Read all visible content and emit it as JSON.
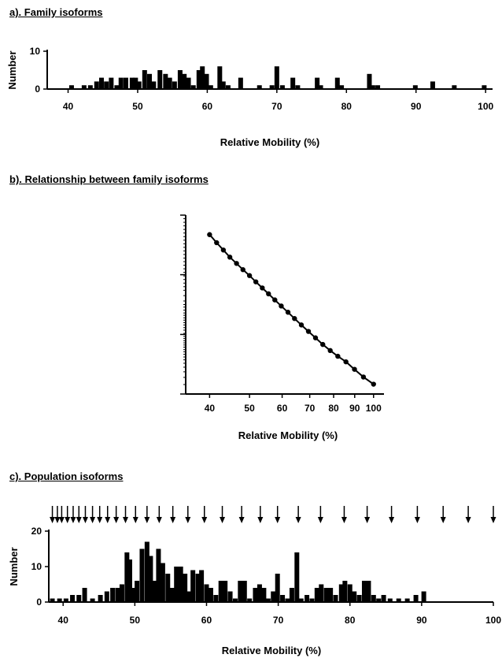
{
  "panels": {
    "a": {
      "title": "a).  Family isoforms"
    },
    "b": {
      "title": "b).  Relationship between family isoforms"
    },
    "c": {
      "title": "c).  Population isoforms"
    }
  },
  "chart_data": [
    {
      "id": "a",
      "type": "bar",
      "title": "a).  Family isoforms",
      "xlabel": "Relative Mobility (%)",
      "ylabel": "Number",
      "xlim": [
        37,
        101
      ],
      "ylim": [
        0,
        10
      ],
      "xticks": [
        40,
        50,
        60,
        70,
        80,
        90,
        100
      ],
      "yticks": [
        0,
        10
      ],
      "x": [
        40.5,
        42.3,
        43.2,
        44.1,
        44.8,
        45.5,
        46.2,
        47,
        47.6,
        48.3,
        49.2,
        49.7,
        50.2,
        51,
        51.7,
        52.3,
        53.2,
        54,
        54.6,
        55.3,
        56.1,
        56.7,
        57.3,
        58,
        58.8,
        59.3,
        59.9,
        60.5,
        61.8,
        62.3,
        63,
        64.8,
        67.5,
        69.3,
        70,
        70.8,
        72.3,
        73,
        75.8,
        76.3,
        78.7,
        79.3,
        83.3,
        83.8,
        84.5,
        89.9,
        92.4,
        95.5,
        99.8
      ],
      "values": [
        1,
        1,
        1,
        2,
        3,
        2,
        3,
        1,
        3,
        3,
        3,
        3,
        2,
        5,
        4,
        2,
        5,
        4,
        3,
        2,
        5,
        4,
        3,
        1,
        5,
        6,
        4,
        1,
        6,
        2,
        1,
        3,
        1,
        1,
        6,
        1,
        3,
        1,
        3,
        1,
        3,
        1,
        4,
        1,
        1,
        1,
        2,
        1,
        1
      ]
    },
    {
      "id": "b",
      "type": "scatter",
      "title": "b).  Relationship between family isoforms",
      "xlabel": "Relative Mobility (%)",
      "ylabel": "",
      "scale": "log",
      "xticks": [
        40,
        50,
        60,
        70,
        80,
        90,
        100
      ],
      "y_note": "unlabeled axis",
      "x": [
        40,
        41.6,
        43.2,
        44.8,
        46.5,
        48.2,
        50,
        51.8,
        53.7,
        55.6,
        57.6,
        59.7,
        62,
        64.3,
        66.8,
        69.5,
        72.3,
        75.3,
        78.5,
        81.9,
        85.7,
        89.9,
        94.5,
        100
      ],
      "y_norm": [
        0.891,
        0.846,
        0.805,
        0.765,
        0.73,
        0.695,
        0.662,
        0.627,
        0.593,
        0.56,
        0.526,
        0.492,
        0.457,
        0.422,
        0.386,
        0.35,
        0.314,
        0.277,
        0.243,
        0.211,
        0.18,
        0.138,
        0.095,
        0.055
      ],
      "line": true
    },
    {
      "id": "c",
      "type": "bar",
      "title": "c).  Population isoforms",
      "xlabel": "Relative Mobility (%)",
      "ylabel": "Number",
      "xlim": [
        38,
        100
      ],
      "ylim": [
        0,
        20
      ],
      "xticks": [
        40,
        50,
        60,
        70,
        80,
        90,
        100
      ],
      "yticks": [
        0,
        10,
        20
      ],
      "arrows_x": [
        38.5,
        39.2,
        39.8,
        40.6,
        41.4,
        42.2,
        43.1,
        44.1,
        45.1,
        46.2,
        47.4,
        48.7,
        50.1,
        51.7,
        53.4,
        55.3,
        57.4,
        59.7,
        62.2,
        64.9,
        67.5,
        69.9,
        72.8,
        75.9,
        79.2,
        82.4,
        85.8,
        89.4,
        93.0,
        96.5,
        100
      ],
      "x": [
        38.5,
        39.5,
        40.4,
        41.3,
        42.2,
        43,
        44.1,
        45.2,
        46.1,
        46.9,
        47.6,
        48.2,
        48.9,
        49.3,
        49.8,
        50.3,
        51,
        51.7,
        52.2,
        52.8,
        53.3,
        53.9,
        54.6,
        55.2,
        55.8,
        56.4,
        57,
        57.5,
        58.1,
        58.8,
        59.3,
        60,
        60.6,
        61.3,
        62,
        62.6,
        63.3,
        64,
        64.7,
        65.3,
        66,
        66.8,
        67.4,
        68,
        68.6,
        69.3,
        69.9,
        70.6,
        71.3,
        71.9,
        72.6,
        73.2,
        74,
        74.7,
        75.4,
        76,
        76.7,
        77.3,
        78,
        78.8,
        79.3,
        80,
        80.6,
        81.3,
        82,
        82.6,
        83.3,
        84,
        84.7,
        85.6,
        86.8,
        88,
        89.2,
        90.3
      ],
      "values": [
        1,
        1,
        1,
        2,
        2,
        4,
        1,
        2,
        3,
        4,
        4,
        5,
        14,
        12,
        4,
        6,
        15,
        17,
        13,
        6,
        15,
        11,
        8,
        4,
        10,
        10,
        8,
        3,
        9,
        8,
        9,
        5,
        4,
        2,
        6,
        6,
        3,
        1,
        6,
        6,
        1,
        4,
        5,
        4,
        1,
        3,
        8,
        2,
        1,
        4,
        14,
        1,
        2,
        1,
        4,
        5,
        4,
        4,
        2,
        5,
        6,
        5,
        3,
        2,
        6,
        6,
        2,
        1,
        2,
        1,
        1,
        1,
        2,
        3
      ]
    }
  ]
}
